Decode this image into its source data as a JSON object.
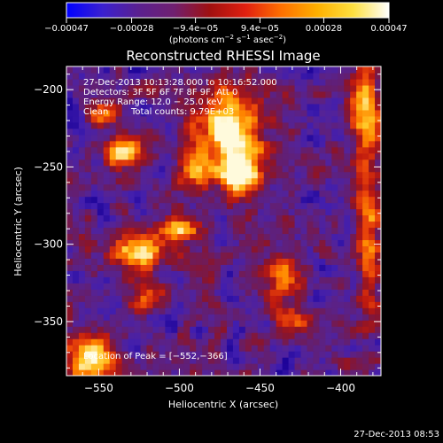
{
  "chart_data": {
    "type": "heatmap",
    "title": "Reconstructed RHESSI Image",
    "xlabel": "Heliocentric X (arcsec)",
    "ylabel": "Heliocentric Y (arcsec)",
    "xlim": [
      -570,
      -375
    ],
    "ylim": [
      -385,
      -185
    ],
    "x_ticks": [
      -550,
      -500,
      -450,
      -400
    ],
    "x_tick_labels": [
      "−550",
      "−500",
      "−450",
      "−400"
    ],
    "y_ticks": [
      -200,
      -250,
      -300,
      -350
    ],
    "y_tick_labels": [
      "−200",
      "−250",
      "−300",
      "−350"
    ],
    "colorbar": {
      "range": [
        -0.00047,
        0.00047
      ],
      "ticks": [
        -0.00047,
        -0.00028,
        -9.4e-05,
        9.4e-05,
        0.00028,
        0.00047
      ],
      "tick_labels": [
        "−0.00047",
        "−0.00028",
        "−9.4e−05",
        "9.4e−05",
        "0.00028",
        "0.00047"
      ],
      "units_prefix": "(photons cm",
      "units_sup1": "−2",
      "units_mid1": " s",
      "units_sup2": "−1",
      "units_mid2": " asec",
      "units_sup3": "−2",
      "units_suffix": ")",
      "colors": [
        "#0000ff",
        "#3a20d0",
        "#5a2090",
        "#702070",
        "#a01010",
        "#e02010",
        "#ff7000",
        "#ffb000",
        "#ffe040",
        "#ffffff"
      ]
    },
    "annotations": {
      "time_range": "27-Dec-2013 10:13:28.000 to 10:16:52.000",
      "detectors": "Detectors: 3F 5F 6F 7F 8F 9F, Att 0",
      "energy_range": "Energy Range: 12.0 − 25.0 keV",
      "algorithm": "Clean",
      "total_counts": "Total counts: 9.79E+03",
      "peak_location": "Location of Peak = [−552,−366]"
    },
    "peak": {
      "x": -552,
      "y": -366
    },
    "emission_regions": [
      {
        "x": -555,
        "y": -375,
        "rx": 18,
        "ry": 14,
        "strength": 1.0
      },
      {
        "x": -470,
        "y": -225,
        "rx": 22,
        "ry": 30,
        "strength": 0.95
      },
      {
        "x": -462,
        "y": -255,
        "rx": 14,
        "ry": 18,
        "strength": 0.85
      },
      {
        "x": -525,
        "y": -305,
        "rx": 20,
        "ry": 13,
        "strength": 0.9
      },
      {
        "x": -500,
        "y": -290,
        "rx": 14,
        "ry": 10,
        "strength": 0.7
      },
      {
        "x": -535,
        "y": -240,
        "rx": 13,
        "ry": 12,
        "strength": 0.75
      },
      {
        "x": -545,
        "y": -215,
        "rx": 10,
        "ry": 9,
        "strength": 0.6
      },
      {
        "x": -385,
        "y": -215,
        "rx": 10,
        "ry": 35,
        "strength": 0.8
      },
      {
        "x": -382,
        "y": -300,
        "rx": 8,
        "ry": 45,
        "strength": 0.6
      },
      {
        "x": -435,
        "y": -320,
        "rx": 14,
        "ry": 14,
        "strength": 0.7
      },
      {
        "x": -430,
        "y": -350,
        "rx": 12,
        "ry": 12,
        "strength": 0.55
      },
      {
        "x": -520,
        "y": -335,
        "rx": 12,
        "ry": 10,
        "strength": 0.55
      },
      {
        "x": -490,
        "y": -250,
        "rx": 10,
        "ry": 14,
        "strength": 0.55
      }
    ]
  },
  "footer": {
    "timestamp": "27-Dec-2013 08:53"
  }
}
